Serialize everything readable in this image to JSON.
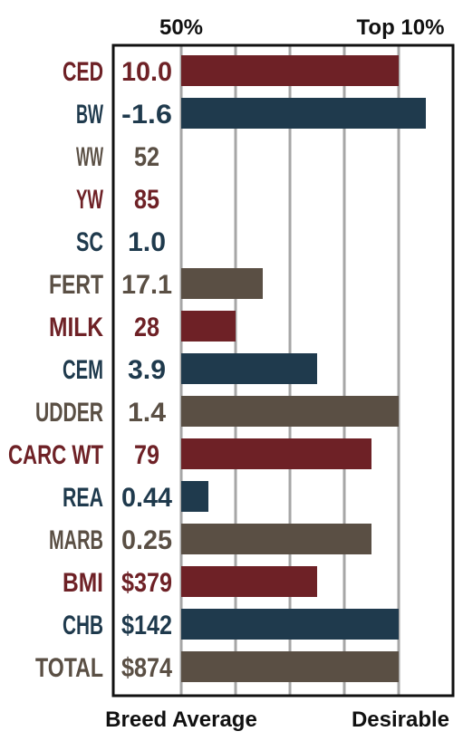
{
  "chart_data": {
    "type": "bar",
    "orientation": "horizontal",
    "top_labels": {
      "left": "50%",
      "right": "Top 10%"
    },
    "bottom_labels": {
      "left": "Breed Average",
      "right": "Desirable"
    },
    "xlim": [
      0,
      5
    ],
    "grid": true,
    "colors": {
      "maroon": "#6e2126",
      "navy": "#1f3a4d",
      "brown": "#5a4f44"
    },
    "rows": [
      {
        "trait": "CED",
        "value_text": "10.0",
        "bar": 4.0,
        "color": "maroon"
      },
      {
        "trait": "BW",
        "value_text": "-1.6",
        "bar": 4.5,
        "color": "navy"
      },
      {
        "trait": "WW",
        "value_text": "52",
        "bar": 0,
        "color": "brown"
      },
      {
        "trait": "YW",
        "value_text": "85",
        "bar": 0,
        "color": "maroon"
      },
      {
        "trait": "SC",
        "value_text": "1.0",
        "bar": 0,
        "color": "navy"
      },
      {
        "trait": "FERT",
        "value_text": "17.1",
        "bar": 1.5,
        "color": "brown"
      },
      {
        "trait": "MILK",
        "value_text": "28",
        "bar": 1.0,
        "color": "maroon"
      },
      {
        "trait": "CEM",
        "value_text": "3.9",
        "bar": 2.5,
        "color": "navy"
      },
      {
        "trait": "UDDER",
        "value_text": "1.4",
        "bar": 4.0,
        "color": "brown"
      },
      {
        "trait": "CARC WT",
        "value_text": "79",
        "bar": 3.5,
        "color": "maroon"
      },
      {
        "trait": "REA",
        "value_text": "0.44",
        "bar": 0.5,
        "color": "navy"
      },
      {
        "trait": "MARB",
        "value_text": "0.25",
        "bar": 3.5,
        "color": "brown"
      },
      {
        "trait": "BMI",
        "value_text": "$379",
        "bar": 2.5,
        "color": "maroon"
      },
      {
        "trait": "CHB",
        "value_text": "$142",
        "bar": 4.0,
        "color": "navy"
      },
      {
        "trait": "TOTAL",
        "value_text": "$874",
        "bar": 4.0,
        "color": "brown"
      }
    ]
  }
}
